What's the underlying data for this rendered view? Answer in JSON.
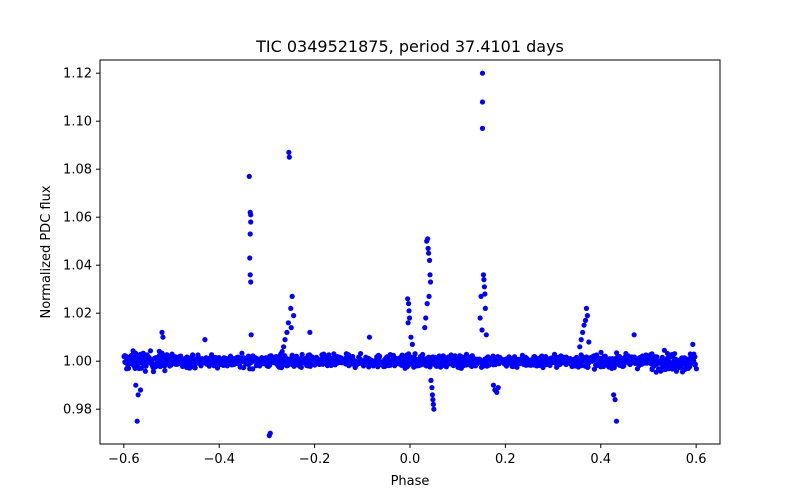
{
  "chart_data": {
    "type": "scatter",
    "title": "TIC 0349521875, period 37.4101 days",
    "xlabel": "Phase",
    "ylabel": "Normalized PDC flux",
    "xlim": [
      -0.65,
      0.65
    ],
    "ylim": [
      0.9655,
      1.1255
    ],
    "xticks": [
      -0.6,
      -0.4,
      -0.2,
      0.0,
      0.2,
      0.4,
      0.6
    ],
    "xtick_labels": [
      "−0.6",
      "−0.4",
      "−0.2",
      "0.0",
      "0.2",
      "0.4",
      "0.6"
    ],
    "yticks": [
      0.98,
      1.0,
      1.02,
      1.04,
      1.06,
      1.08,
      1.1,
      1.12
    ],
    "ytick_labels": [
      "0.98",
      "1.00",
      "1.02",
      "1.04",
      "1.06",
      "1.08",
      "1.10",
      "1.12"
    ],
    "grid": false,
    "marker_color": "#0000ff",
    "series": [
      {
        "name": "flux",
        "baseline_range": [
          -0.6,
          0.6
        ],
        "baseline_noise": 0.0025,
        "baseline_point_count": 1400,
        "features": [
          {
            "x": [
              -0.337,
              -0.335,
              -0.334,
              -0.334,
              -0.335,
              -0.336,
              -0.335,
              -0.334,
              -0.333
            ],
            "y": [
              1.077,
              1.062,
              1.061,
              1.058,
              1.053,
              1.043,
              1.036,
              1.033,
              1.011
            ]
          },
          {
            "x": [
              -0.254,
              -0.253,
              -0.255,
              -0.258,
              -0.262,
              -0.265,
              -0.268,
              -0.271,
              -0.274,
              -0.25,
              -0.247,
              -0.244,
              -0.249
            ],
            "y": [
              1.087,
              1.085,
              1.016,
              1.012,
              1.009,
              1.006,
              1.004,
              1.003,
              1.002,
              1.022,
              1.027,
              1.019,
              1.014
            ]
          },
          {
            "x": [
              -0.295,
              -0.293
            ],
            "y": [
              0.969,
              0.97
            ]
          },
          {
            "x": [
              0.035,
              0.037,
              0.038,
              0.039,
              0.041,
              0.042,
              0.043,
              0.04,
              0.036,
              0.033,
              0.031
            ],
            "y": [
              1.05,
              1.051,
              1.047,
              1.045,
              1.042,
              1.036,
              1.033,
              1.027,
              1.024,
              1.018,
              1.014
            ]
          },
          {
            "x": [
              0.044,
              0.046,
              0.047,
              0.048,
              0.049,
              0.05
            ],
            "y": [
              0.992,
              0.989,
              0.986,
              0.984,
              0.982,
              0.98
            ]
          },
          {
            "x": [
              -0.005,
              -0.003,
              -0.002,
              -0.001,
              -0.004,
              0.002,
              0.005
            ],
            "y": [
              1.026,
              1.024,
              1.021,
              1.018,
              1.016,
              1.01,
              1.007
            ]
          },
          {
            "x": [
              0.152,
              0.152,
              0.152,
              0.154,
              0.155,
              0.156,
              0.157,
              0.158,
              0.149,
              0.147,
              0.151,
              0.16
            ],
            "y": [
              1.12,
              1.108,
              1.097,
              1.036,
              1.034,
              1.031,
              1.028,
              1.022,
              1.027,
              1.018,
              1.013,
              1.011
            ]
          },
          {
            "x": [
              0.175,
              0.178,
              0.182,
              0.185
            ],
            "y": [
              0.99,
              0.988,
              0.987,
              0.989
            ]
          },
          {
            "x": [
              0.37,
              0.372,
              0.368,
              0.365,
              0.362,
              0.359,
              0.356,
              0.375
            ],
            "y": [
              1.022,
              1.019,
              1.017,
              1.015,
              1.012,
              1.009,
              1.006,
              1.008
            ]
          },
          {
            "x": [
              0.433,
              0.43,
              0.427
            ],
            "y": [
              0.975,
              0.984,
              0.986
            ]
          },
          {
            "x": [
              -0.572,
              -0.57,
              -0.575,
              -0.565
            ],
            "y": [
              0.975,
              0.986,
              0.99,
              0.988
            ]
          },
          {
            "x": [
              -0.52,
              -0.518,
              -0.43,
              -0.21,
              -0.085,
              0.47,
              0.593
            ],
            "y": [
              1.012,
              1.01,
              1.009,
              1.012,
              1.01,
              1.011,
              1.007
            ]
          }
        ]
      }
    ]
  }
}
